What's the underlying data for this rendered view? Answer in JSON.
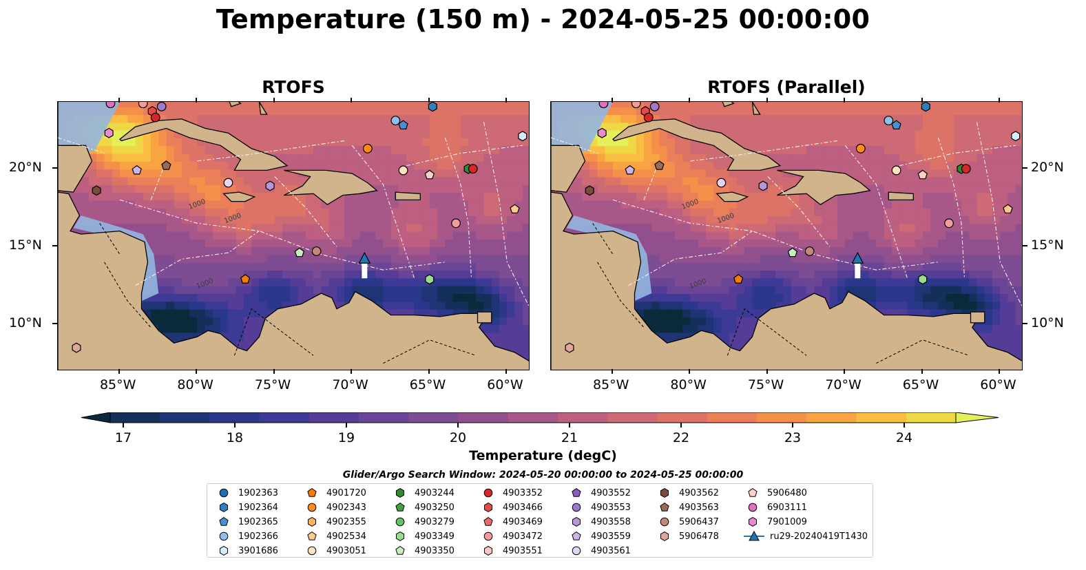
{
  "title": "Temperature (150 m) - 2024-05-25 00:00:00",
  "panels": [
    {
      "title": "RTOFS"
    },
    {
      "title": "RTOFS (Parallel)"
    }
  ],
  "lon_ticks": [
    "85°W",
    "80°W",
    "75°W",
    "70°W",
    "65°W",
    "60°W"
  ],
  "lon_values": [
    -85,
    -80,
    -75,
    -70,
    -65,
    -60
  ],
  "lat_ticks": [
    "20°N",
    "15°N",
    "10°N"
  ],
  "lat_values": [
    20,
    15,
    10
  ],
  "map_extent": {
    "lon_min": -89,
    "lon_max": -58.5,
    "lat_min": 7,
    "lat_max": 24.3
  },
  "bathymetry_labels": [
    "1000",
    "1000",
    "1000"
  ],
  "colorbar": {
    "label": "Temperature (degC)",
    "min": 16.5,
    "max": 24.5,
    "ticks": [
      "17",
      "18",
      "19",
      "20",
      "21",
      "22",
      "23",
      "24"
    ],
    "colors": [
      "#0a2a3c",
      "#142f5a",
      "#1f3474",
      "#2a378a",
      "#3d3a96",
      "#553d97",
      "#6a4596",
      "#7d4c92",
      "#914f8d",
      "#a75788",
      "#bc5f80",
      "#cd6a74",
      "#dd7366",
      "#ea7f58",
      "#f4904a",
      "#f9a443",
      "#f8bd42",
      "#eed846",
      "#e4f059"
    ]
  },
  "legend": {
    "title": "Glider/Argo Search Window: 2024-05-20 00:00:00 to 2024-05-25 00:00:00",
    "columns": [
      [
        {
          "label": "1902363",
          "color": "#1f6fb4",
          "marker": "circle"
        },
        {
          "label": "1902364",
          "color": "#2f7fc0",
          "marker": "hexagon"
        },
        {
          "label": "1902365",
          "color": "#4a90d0",
          "marker": "pentagon"
        },
        {
          "label": "1902366",
          "color": "#8fc0ea",
          "marker": "circle"
        },
        {
          "label": "3901686",
          "color": "#d4ecfb",
          "marker": "hexagon"
        }
      ],
      [
        {
          "label": "4901720",
          "color": "#f57c00",
          "marker": "pentagon"
        },
        {
          "label": "4902343",
          "color": "#ff8c1a",
          "marker": "circle"
        },
        {
          "label": "4902355",
          "color": "#ffb060",
          "marker": "hexagon"
        },
        {
          "label": "4902534",
          "color": "#ffc98e",
          "marker": "pentagon"
        },
        {
          "label": "4903051",
          "color": "#ffe2c2",
          "marker": "circle"
        }
      ],
      [
        {
          "label": "4903244",
          "color": "#2e8b2e",
          "marker": "hexagon"
        },
        {
          "label": "4903250",
          "color": "#3fa43f",
          "marker": "pentagon"
        },
        {
          "label": "4903279",
          "color": "#62c462",
          "marker": "circle"
        },
        {
          "label": "4903349",
          "color": "#98dd8e",
          "marker": "hexagon"
        },
        {
          "label": "4903350",
          "color": "#c8f0bf",
          "marker": "pentagon"
        }
      ],
      [
        {
          "label": "4903352",
          "color": "#d62728",
          "marker": "circle"
        },
        {
          "label": "4903466",
          "color": "#e34a4a",
          "marker": "hexagon"
        },
        {
          "label": "4903469",
          "color": "#ec6a6a",
          "marker": "pentagon"
        },
        {
          "label": "4903472",
          "color": "#f49b9b",
          "marker": "circle"
        },
        {
          "label": "4903551",
          "color": "#fbc7c7",
          "marker": "hexagon"
        }
      ],
      [
        {
          "label": "4903552",
          "color": "#8a5cc2",
          "marker": "pentagon"
        },
        {
          "label": "4903553",
          "color": "#9e78cc",
          "marker": "circle"
        },
        {
          "label": "4903558",
          "color": "#b697dc",
          "marker": "hexagon"
        },
        {
          "label": "4903559",
          "color": "#cdb5eb",
          "marker": "pentagon"
        },
        {
          "label": "4903561",
          "color": "#e2d5f6",
          "marker": "circle"
        }
      ],
      [
        {
          "label": "4903562",
          "color": "#7a4a3a",
          "marker": "hexagon"
        },
        {
          "label": "4903563",
          "color": "#9b6a58",
          "marker": "pentagon"
        },
        {
          "label": "5906437",
          "color": "#c4887a",
          "marker": "circle"
        },
        {
          "label": "5906478",
          "color": "#e0a89a",
          "marker": "hexagon"
        }
      ],
      [
        {
          "label": "5906480",
          "color": "#fbd0c8",
          "marker": "pentagon"
        },
        {
          "label": "6903111",
          "color": "#e070c0",
          "marker": "circle"
        },
        {
          "label": "7901009",
          "color": "#ea8ad0",
          "marker": "hexagon"
        },
        {
          "label": "ru29-20240419T1430",
          "color": "#1f77b4",
          "marker": "triangle-line"
        }
      ]
    ]
  },
  "floats": [
    {
      "id": "6903111",
      "lon": -85.6,
      "lat": 24.2,
      "color": "#e070c0",
      "marker": "circle"
    },
    {
      "id": "4903472",
      "lon": -83.5,
      "lat": 24.2,
      "color": "#f49b9b",
      "marker": "circle"
    },
    {
      "id": "4903553",
      "lon": -82.3,
      "lat": 24.0,
      "color": "#9e78cc",
      "marker": "circle"
    },
    {
      "id": "4903466",
      "lon": -82.9,
      "lat": 23.7,
      "color": "#e34a4a",
      "marker": "hexagon"
    },
    {
      "id": "4903352",
      "lon": -82.7,
      "lat": 23.3,
      "color": "#d62728",
      "marker": "circle"
    },
    {
      "id": "7901009",
      "lon": -85.7,
      "lat": 22.3,
      "color": "#ea8ad0",
      "marker": "hexagon"
    },
    {
      "id": "4903559",
      "lon": -83.9,
      "lat": 19.9,
      "color": "#cdb5eb",
      "marker": "pentagon"
    },
    {
      "id": "4903563",
      "lon": -82.0,
      "lat": 20.2,
      "color": "#9b6a58",
      "marker": "pentagon"
    },
    {
      "id": "4903562",
      "lon": -86.5,
      "lat": 18.6,
      "color": "#7a4a3a",
      "marker": "hexagon"
    },
    {
      "id": "4903561",
      "lon": -78.0,
      "lat": 19.1,
      "color": "#e2d5f6",
      "marker": "circle"
    },
    {
      "id": "4903558",
      "lon": -75.3,
      "lat": 18.9,
      "color": "#b697dc",
      "marker": "hexagon"
    },
    {
      "id": "1902366",
      "lon": -67.2,
      "lat": 23.1,
      "color": "#8fc0ea",
      "marker": "circle"
    },
    {
      "id": "1902365",
      "lon": -66.7,
      "lat": 22.8,
      "color": "#4a90d0",
      "marker": "pentagon"
    },
    {
      "id": "1902364",
      "lon": -64.8,
      "lat": 24.0,
      "color": "#2f7fc0",
      "marker": "hexagon"
    },
    {
      "id": "4902343",
      "lon": -69.0,
      "lat": 21.3,
      "color": "#ff8c1a",
      "marker": "circle"
    },
    {
      "id": "4903051",
      "lon": -66.7,
      "lat": 19.9,
      "color": "#ffe2c2",
      "marker": "circle"
    },
    {
      "id": "5906480",
      "lon": -65.0,
      "lat": 19.6,
      "color": "#fbd0c8",
      "marker": "pentagon"
    },
    {
      "id": "4903244",
      "lon": -62.5,
      "lat": 20.0,
      "color": "#2e8b2e",
      "marker": "hexagon"
    },
    {
      "id": "4903352b",
      "lon": -62.2,
      "lat": 20.0,
      "color": "#d62728",
      "marker": "circle"
    },
    {
      "id": "3901686",
      "lon": -59.0,
      "lat": 22.1,
      "color": "#d4ecfb",
      "marker": "hexagon"
    },
    {
      "id": "4902534",
      "lon": -59.5,
      "lat": 17.4,
      "color": "#ffc98e",
      "marker": "pentagon"
    },
    {
      "id": "4903472b",
      "lon": -63.3,
      "lat": 16.5,
      "color": "#f49b9b",
      "marker": "circle"
    },
    {
      "id": "4903350",
      "lon": -73.4,
      "lat": 14.6,
      "color": "#c8f0bf",
      "marker": "pentagon"
    },
    {
      "id": "5906437",
      "lon": -72.3,
      "lat": 14.7,
      "color": "#c4887a",
      "marker": "circle"
    },
    {
      "id": "4901720",
      "lon": -76.9,
      "lat": 12.9,
      "color": "#f57c00",
      "marker": "pentagon"
    },
    {
      "id": "4903349",
      "lon": -65.0,
      "lat": 12.9,
      "color": "#98dd8e",
      "marker": "hexagon"
    },
    {
      "id": "5906478",
      "lon": -87.8,
      "lat": 8.5,
      "color": "#e0a89a",
      "marker": "hexagon"
    }
  ],
  "glider": {
    "id": "ru29-20240419T1430",
    "lon": -69.2,
    "lat": 14.2,
    "color": "#1f77b4"
  }
}
